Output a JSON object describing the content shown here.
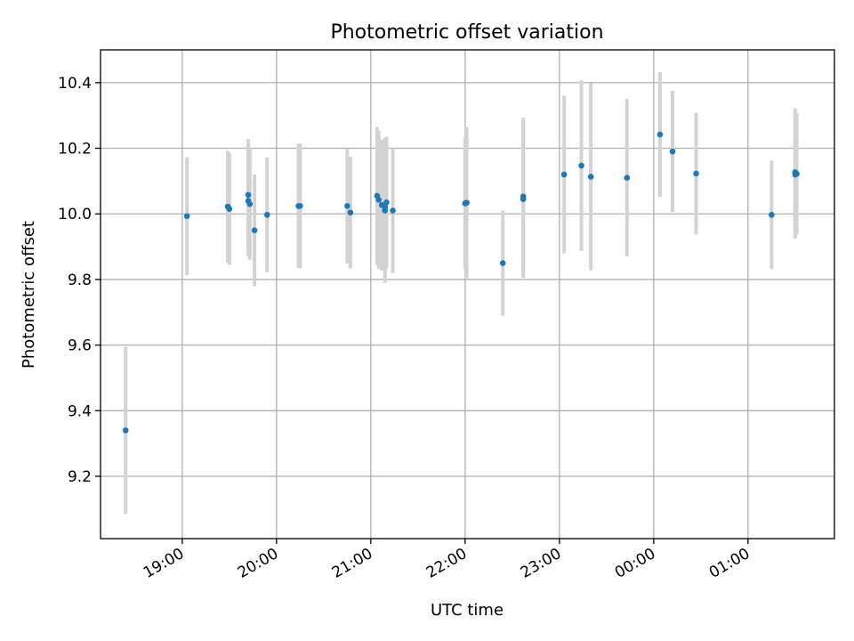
{
  "chart_data": {
    "type": "scatter",
    "title": "Photometric offset variation",
    "xlabel": "UTC time",
    "ylabel": "Photometric offset",
    "x_axis_type": "time",
    "xlim": [
      "18:08",
      "01:55"
    ],
    "ylim": [
      9.01,
      10.5
    ],
    "grid": true,
    "legend": "none",
    "x_ticks": [
      "19:00",
      "20:00",
      "21:00",
      "22:00",
      "23:00",
      "00:00",
      "01:00"
    ],
    "y_ticks": [
      9.2,
      9.4,
      9.6,
      9.8,
      10.0,
      10.2,
      10.4
    ],
    "y_tick_labels": [
      "9.2",
      "9.4",
      "9.6",
      "9.8",
      "10.0",
      "10.2",
      "10.4"
    ],
    "marker_color": "#1f77b4",
    "errorbar_color": "#d3d3d3",
    "points": [
      {
        "t": "18:24",
        "y": 9.34,
        "err": 0.255
      },
      {
        "t": "19:03",
        "y": 9.993,
        "err": 0.18
      },
      {
        "t": "19:29",
        "y": 10.022,
        "err": 0.17
      },
      {
        "t": "19:30",
        "y": 10.015,
        "err": 0.17
      },
      {
        "t": "19:42",
        "y": 10.058,
        "err": 0.17
      },
      {
        "t": "19:42",
        "y": 10.04,
        "err": 0.17
      },
      {
        "t": "19:43",
        "y": 10.03,
        "err": 0.17
      },
      {
        "t": "19:46",
        "y": 9.95,
        "err": 0.17
      },
      {
        "t": "19:54",
        "y": 9.997,
        "err": 0.175
      },
      {
        "t": "20:14",
        "y": 10.024,
        "err": 0.19
      },
      {
        "t": "20:15",
        "y": 10.024,
        "err": 0.19
      },
      {
        "t": "20:45",
        "y": 10.024,
        "err": 0.175
      },
      {
        "t": "20:47",
        "y": 10.004,
        "err": 0.17
      },
      {
        "t": "21:04",
        "y": 10.055,
        "err": 0.21
      },
      {
        "t": "21:05",
        "y": 10.043,
        "err": 0.21
      },
      {
        "t": "21:07",
        "y": 10.027,
        "err": 0.2
      },
      {
        "t": "21:09",
        "y": 10.02,
        "err": 0.21
      },
      {
        "t": "21:09",
        "y": 10.01,
        "err": 0.22
      },
      {
        "t": "21:10",
        "y": 10.035,
        "err": 0.2
      },
      {
        "t": "21:14",
        "y": 10.01,
        "err": 0.19
      },
      {
        "t": "22:00",
        "y": 10.032,
        "err": 0.2
      },
      {
        "t": "22:01",
        "y": 10.034,
        "err": 0.23
      },
      {
        "t": "22:24",
        "y": 9.85,
        "err": 0.16
      },
      {
        "t": "22:37",
        "y": 10.053,
        "err": 0.24
      },
      {
        "t": "22:37",
        "y": 10.045,
        "err": 0.24
      },
      {
        "t": "23:03",
        "y": 10.12,
        "err": 0.24
      },
      {
        "t": "23:14",
        "y": 10.147,
        "err": 0.26
      },
      {
        "t": "23:20",
        "y": 10.113,
        "err": 0.285
      },
      {
        "t": "23:43",
        "y": 10.11,
        "err": 0.24
      },
      {
        "t": "00:04",
        "y": 10.242,
        "err": 0.19
      },
      {
        "t": "00:12",
        "y": 10.19,
        "err": 0.185
      },
      {
        "t": "00:27",
        "y": 10.123,
        "err": 0.185
      },
      {
        "t": "01:15",
        "y": 9.997,
        "err": 0.165
      },
      {
        "t": "01:30",
        "y": 10.127,
        "err": 0.195
      },
      {
        "t": "01:30",
        "y": 10.12,
        "err": 0.195
      },
      {
        "t": "01:31",
        "y": 10.122,
        "err": 0.185
      }
    ]
  }
}
